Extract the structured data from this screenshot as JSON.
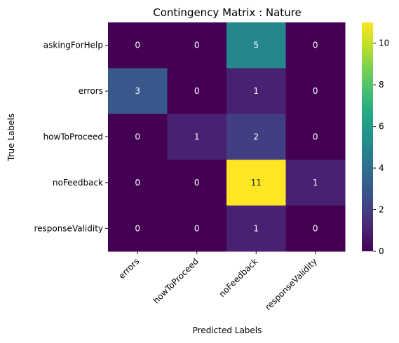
{
  "chart_data": {
    "type": "heatmap",
    "title": "Contingency Matrix : Nature",
    "xlabel": "Predicted Labels",
    "ylabel": "True Labels",
    "x_categories": [
      "errors",
      "howToProceed",
      "noFeedback",
      "responseValidity"
    ],
    "y_categories": [
      "askingForHelp",
      "errors",
      "howToProceed",
      "noFeedback",
      "responseValidity"
    ],
    "values": [
      [
        0,
        0,
        5,
        0
      ],
      [
        3,
        0,
        1,
        0
      ],
      [
        0,
        1,
        2,
        0
      ],
      [
        0,
        0,
        11,
        1
      ],
      [
        0,
        0,
        1,
        0
      ]
    ],
    "colormap": "viridis",
    "colorbar": {
      "vmin": 0,
      "vmax": 11,
      "ticks": [
        0,
        2,
        4,
        6,
        8,
        10
      ]
    },
    "annotations": true,
    "grid": false
  }
}
